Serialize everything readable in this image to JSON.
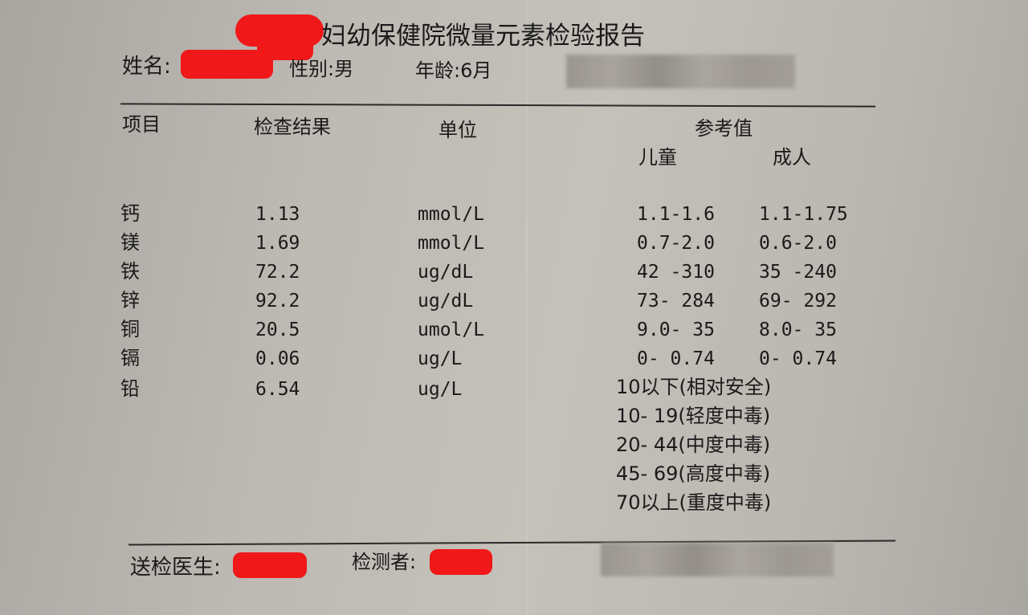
{
  "title": "妇幼保健院微量元素检验报告",
  "patient": {
    "name_label": "姓名:",
    "sex_label": "性别:男",
    "age_label": "年龄:6月"
  },
  "headers": {
    "item": "项目",
    "result": "检查结果",
    "unit": "单位",
    "reference": "参考值",
    "child": "儿童",
    "adult": "成人"
  },
  "rows": [
    {
      "item": "钙",
      "result": "1.13",
      "unit": "mmol/L",
      "child": "1.1-1.6",
      "adult": "1.1-1.75"
    },
    {
      "item": "镁",
      "result": "1.69",
      "unit": "mmol/L",
      "child": "0.7-2.0",
      "adult": "0.6-2.0"
    },
    {
      "item": "铁",
      "result": "72.2",
      "unit": "ug/dL",
      "child": "42 -310",
      "adult": "35 -240"
    },
    {
      "item": "锌",
      "result": "92.2",
      "unit": "ug/dL",
      "child": "73- 284",
      "adult": "69- 292"
    },
    {
      "item": "铜",
      "result": "20.5",
      "unit": "umol/L",
      "child": "9.0- 35",
      "adult": "8.0- 35"
    },
    {
      "item": "镉",
      "result": "0.06",
      "unit": "ug/L",
      "child": "0- 0.74",
      "adult": "0- 0.74"
    },
    {
      "item": "铅",
      "result": "6.54",
      "unit": "ug/L"
    }
  ],
  "lead_reference": [
    "10以下(相对安全)",
    "10- 19(轻度中毒)",
    "20- 44(中度中毒)",
    "45- 69(高度中毒)",
    "70以上(重度中毒)"
  ],
  "footer": {
    "doctor_label": "送检医生:",
    "tester_label": "检测者:"
  },
  "colors": {
    "redaction": "#f01818",
    "ink": "#1a1a1a"
  }
}
